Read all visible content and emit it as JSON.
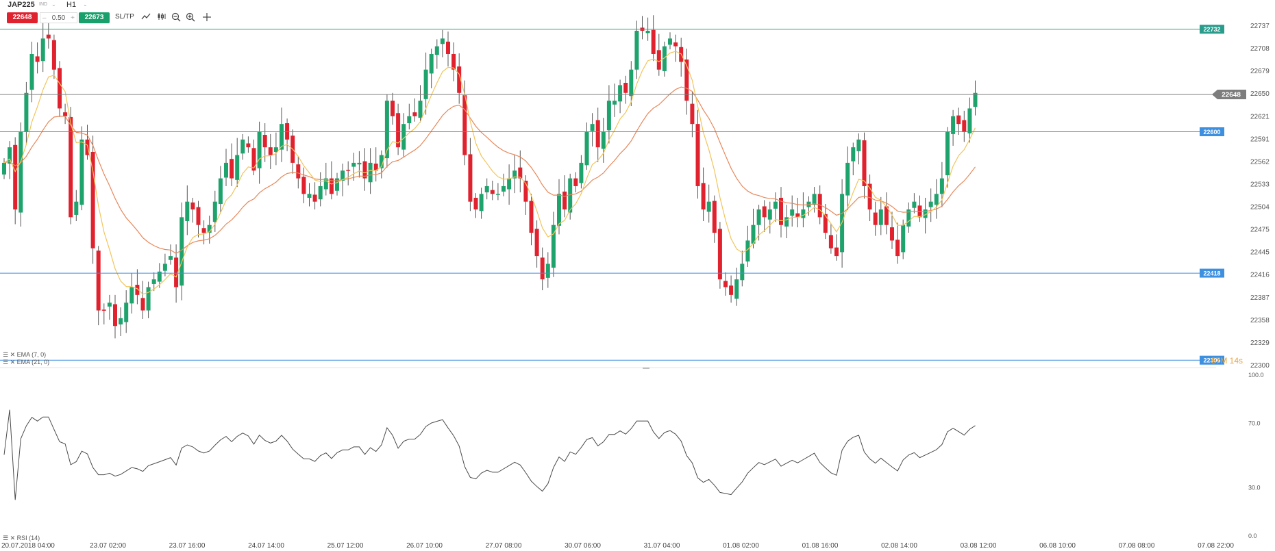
{
  "toolbar": {
    "symbol": "JAP225",
    "symbol_sub": "IND",
    "timeframe": "H1",
    "sell_price": "22648",
    "quantity": "0.50",
    "buy_price": "22673",
    "sltp_label": "SL/TP",
    "icons": [
      "trend-line-icon",
      "candle-type-icon",
      "zoom-out-icon",
      "zoom-in-icon",
      "crosshair-icon"
    ]
  },
  "indicators": {
    "ema_fast_label": "EMA (7, 0)",
    "ema_slow_label": "EMA (21, 0)",
    "rsi_label": "RSI (14)"
  },
  "timer": "57M 14s",
  "colors": {
    "bull": "#1fa36d",
    "bear": "#e0212e",
    "ema_fast": "#f2c45a",
    "ema_slow": "#e8875a",
    "level_line": "#3d8fe0",
    "resistance_line": "#2a9c8c",
    "current_price_line": "#7d7d7d",
    "rsi_line": "#4a4a4a"
  },
  "chart_data": {
    "type": "candlestick",
    "ylim": [
      22300,
      22750
    ],
    "y_ticks": [
      "22737",
      "22708",
      "22679",
      "22650",
      "22621",
      "22591",
      "22562",
      "22533",
      "22504",
      "22475",
      "22445",
      "22416",
      "22387",
      "22358",
      "22329",
      "22300"
    ],
    "x_labels": [
      "20.07.2018 04:00",
      "23.07 02:00",
      "23.07 16:00",
      "24.07 14:00",
      "25.07 12:00",
      "26.07 10:00",
      "27.07 08:00",
      "30.07 06:00",
      "31.07 04:00",
      "01.08 02:00",
      "01.08 16:00",
      "02.08 14:00",
      "03.08 12:00",
      "06.08 10:00",
      "07.08 08:00",
      "07.08 22:00"
    ],
    "levels": [
      {
        "label": "22732",
        "price": 22732,
        "kind": "resistance"
      },
      {
        "label": "22600",
        "price": 22600,
        "kind": "level"
      },
      {
        "label": "22418",
        "price": 22418,
        "kind": "level"
      },
      {
        "label": "22306",
        "price": 22306,
        "kind": "level"
      }
    ],
    "current_price": {
      "label": "22648",
      "price": 22648
    },
    "closes": [
      22560,
      22580,
      22500,
      22600,
      22650,
      22700,
      22690,
      22720,
      22720,
      22680,
      22630,
      22620,
      22490,
      22510,
      22590,
      22570,
      22450,
      22370,
      22370,
      22380,
      22350,
      22360,
      22380,
      22400,
      22390,
      22370,
      22400,
      22410,
      22420,
      22430,
      22440,
      22400,
      22490,
      22510,
      22500,
      22480,
      22470,
      22480,
      22510,
      22540,
      22560,
      22540,
      22570,
      22590,
      22580,
      22550,
      22600,
      22580,
      22570,
      22580,
      22610,
      22590,
      22560,
      22540,
      22520,
      22520,
      22510,
      22530,
      22540,
      22520,
      22540,
      22550,
      22550,
      22560,
      22560,
      22540,
      22560,
      22550,
      22570,
      22640,
      22620,
      22580,
      22610,
      22620,
      22620,
      22640,
      22680,
      22700,
      22710,
      22720,
      22700,
      22680,
      22650,
      22570,
      22510,
      22500,
      22520,
      22530,
      22520,
      22520,
      22530,
      22540,
      22550,
      22540,
      22510,
      22470,
      22440,
      22410,
      22430,
      22480,
      22520,
      22500,
      22540,
      22530,
      22560,
      22600,
      22610,
      22580,
      22600,
      22640,
      22640,
      22660,
      22650,
      22680,
      22730,
      22730,
      22730,
      22700,
      22680,
      22710,
      22720,
      22710,
      22690,
      22640,
      22610,
      22530,
      22500,
      22510,
      22470,
      22410,
      22400,
      22390,
      22410,
      22430,
      22460,
      22480,
      22500,
      22490,
      22500,
      22510,
      22480,
      22490,
      22500,
      22490,
      22500,
      22510,
      22520,
      22490,
      22470,
      22450,
      22440,
      22520,
      22560,
      22580,
      22590,
      22530,
      22500,
      22480,
      22500,
      22480,
      22460,
      22440,
      22480,
      22500,
      22510,
      22490,
      22500,
      22510,
      22520,
      22540,
      22600,
      22620,
      22610,
      22600,
      22630,
      22650
    ],
    "rsi_ylim": [
      0,
      100
    ],
    "rsi_ticks": [
      "100.0",
      "70.0",
      "30.0",
      "0.0"
    ]
  }
}
